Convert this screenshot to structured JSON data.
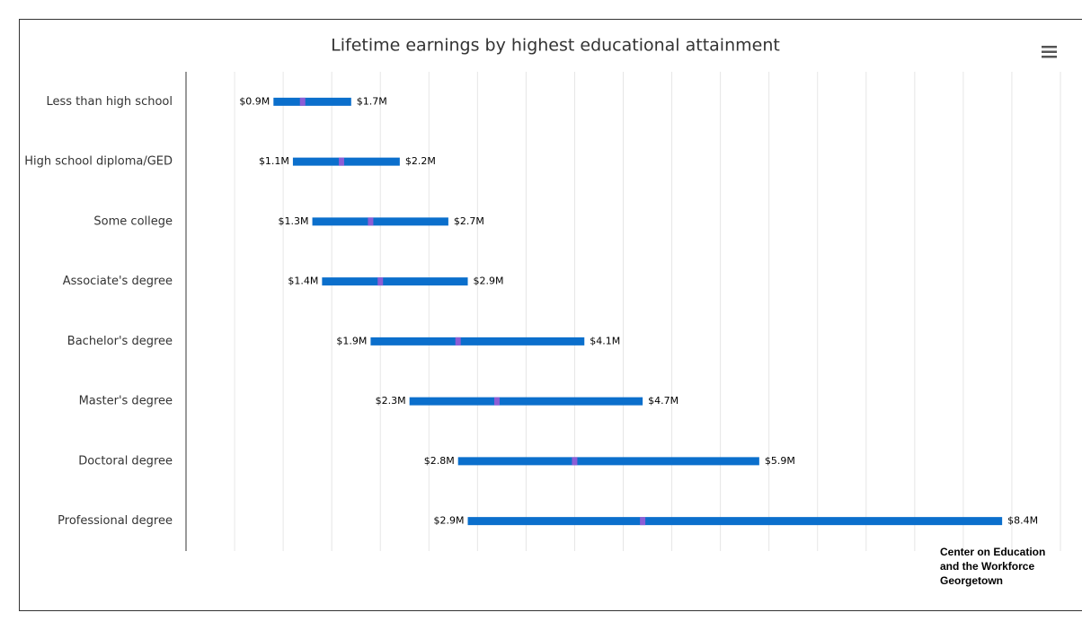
{
  "chart_data": {
    "type": "rangebar",
    "title": "Lifetime earnings by highest educational attainment",
    "categories": [
      "Less than high school",
      "High school diploma/GED",
      "Some college",
      "Associate's degree",
      "Bachelor's degree",
      "Master's degree",
      "Doctoral degree",
      "Professional degree"
    ],
    "low": [
      0.9,
      1.1,
      1.3,
      1.4,
      1.9,
      2.3,
      2.8,
      2.9
    ],
    "low_labels": [
      "$0.9M",
      "$1.1M",
      "$1.3M",
      "$1.4M",
      "$1.9M",
      "$2.3M",
      "$2.8M",
      "$2.9M"
    ],
    "high": [
      1.7,
      2.2,
      2.7,
      2.9,
      4.1,
      4.7,
      5.9,
      8.4
    ],
    "high_labels": [
      "$1.7M",
      "$2.2M",
      "$2.7M",
      "$2.9M",
      "$4.1M",
      "$4.7M",
      "$5.9M",
      "$8.4M"
    ],
    "median": [
      1.2,
      1.6,
      1.9,
      2.0,
      2.8,
      3.2,
      4.0,
      4.7
    ],
    "color": "#0b6fcc",
    "median_color": "#a35bd6",
    "xlim": [
      0,
      9
    ],
    "xticks": [
      0,
      0.5,
      1,
      1.5,
      2,
      2.5,
      3,
      3.5,
      4,
      4.5,
      5,
      5.5,
      6,
      6.5,
      7,
      7.5,
      8,
      8.5,
      9
    ],
    "grid": true,
    "credits": [
      "Center on Education",
      "and the Workforce",
      "Georgetown"
    ]
  }
}
